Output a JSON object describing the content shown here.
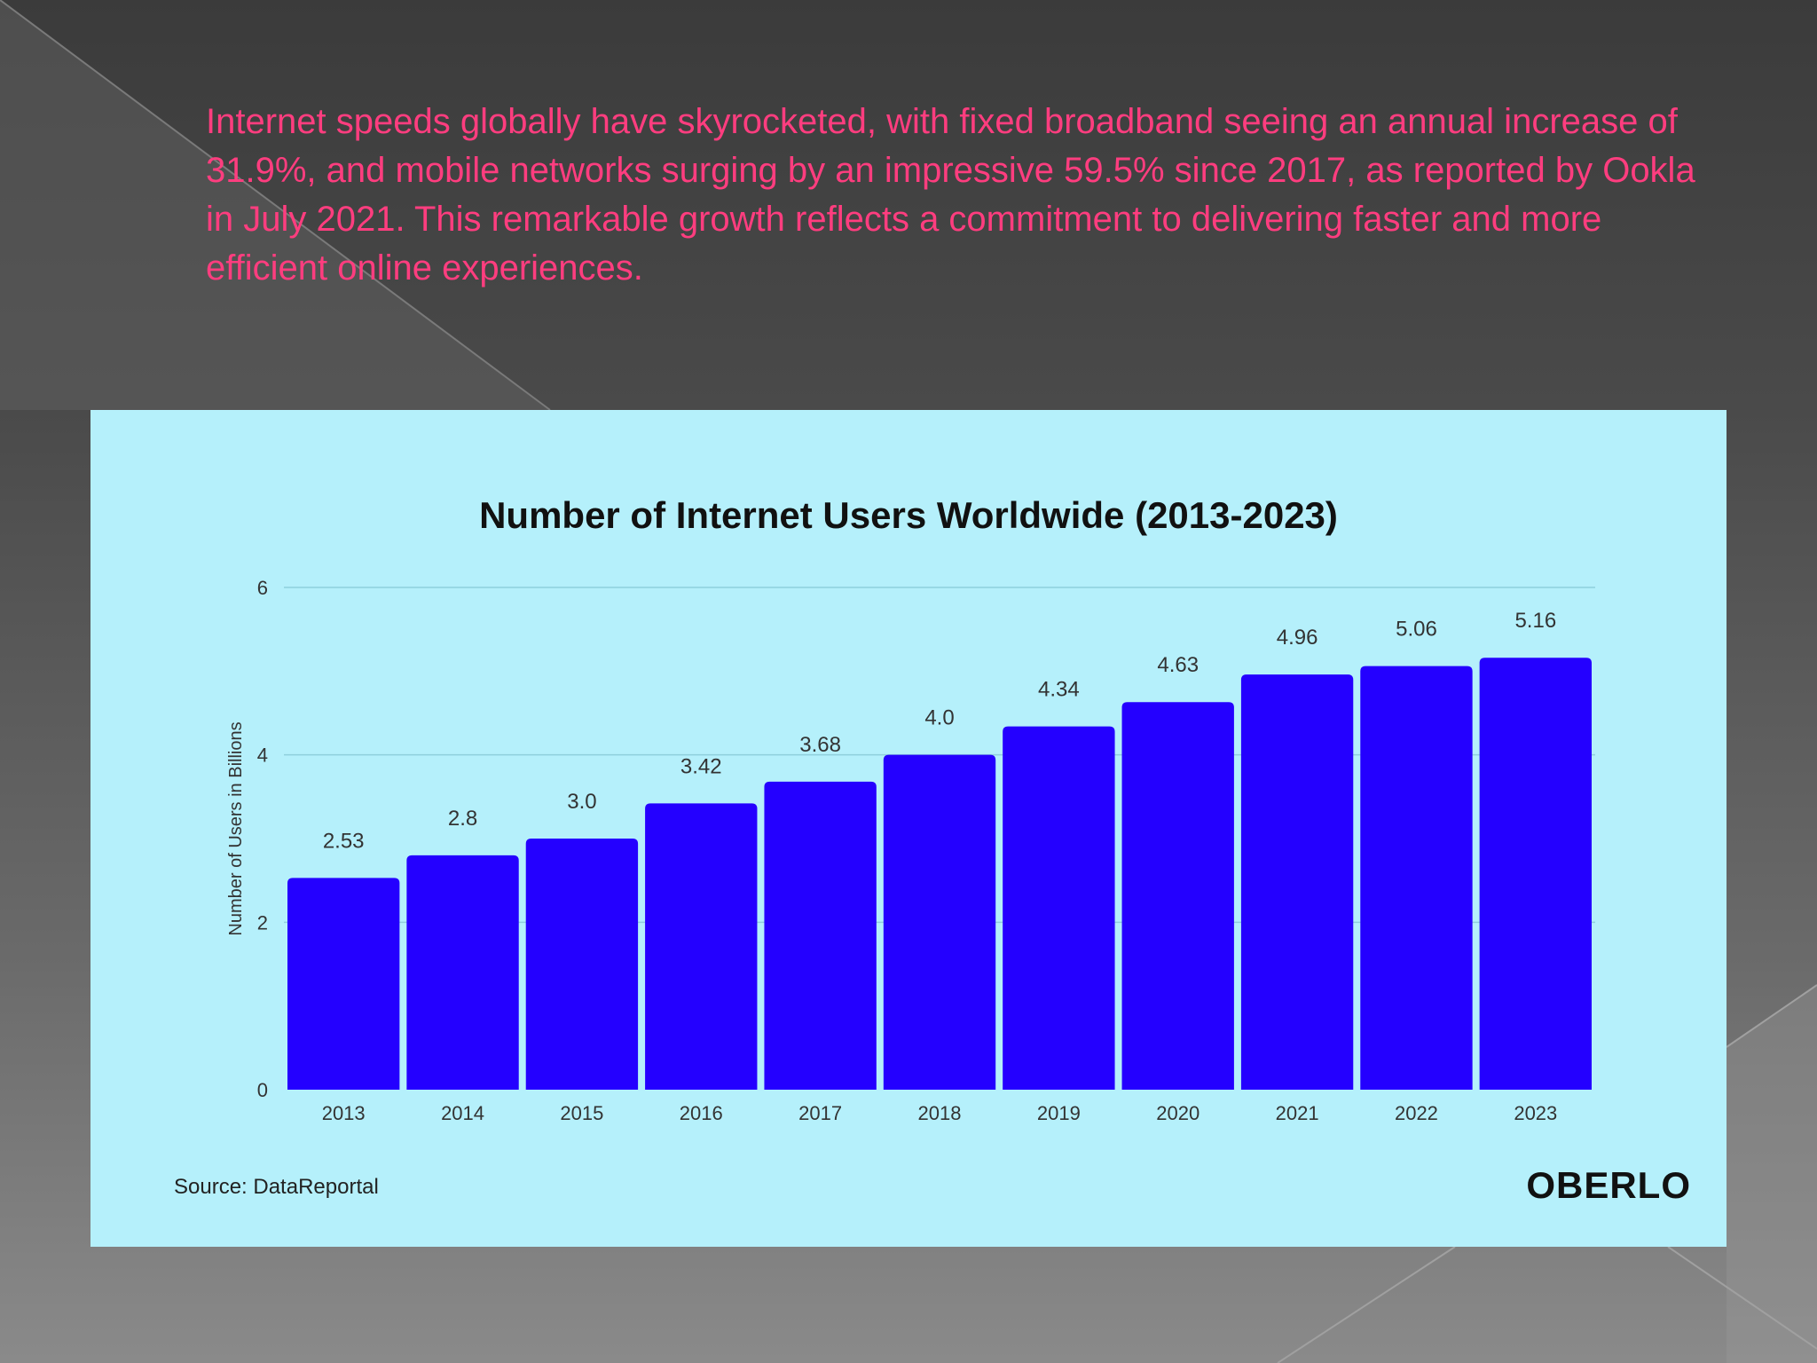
{
  "slide": {
    "text": "Internet speeds globally have skyrocketed, with fixed broadband seeing an annual increase of 31.9%, and mobile networks surging by an impressive 59.5% since 2017, as reported by Ookla in July 2021. This remarkable growth reflects a commitment to delivering faster and more efficient online experiences.",
    "text_color": "#ff3d7f"
  },
  "chart_data": {
    "type": "bar",
    "title": "Number of Internet Users Worldwide (2013-2023)",
    "xlabel": "",
    "ylabel": "Number of Users in Billions",
    "categories": [
      "2013",
      "2014",
      "2015",
      "2016",
      "2017",
      "2018",
      "2019",
      "2020",
      "2021",
      "2022",
      "2023"
    ],
    "values": [
      2.53,
      2.8,
      3.0,
      3.42,
      3.68,
      4.0,
      4.34,
      4.63,
      4.96,
      5.06,
      5.16
    ],
    "value_labels": [
      "2.53",
      "2.8",
      "3.0",
      "3.42",
      "3.68",
      "4.0",
      "4.34",
      "4.63",
      "4.96",
      "5.06",
      "5.16"
    ],
    "ylim": [
      0,
      6
    ],
    "yticks": [
      "0",
      "2",
      "4",
      "6"
    ],
    "bar_color": "#2400ff",
    "background_color": "#b5f0fb",
    "grid": true,
    "source": "Source: DataReportal",
    "brand": "OBERLO"
  }
}
